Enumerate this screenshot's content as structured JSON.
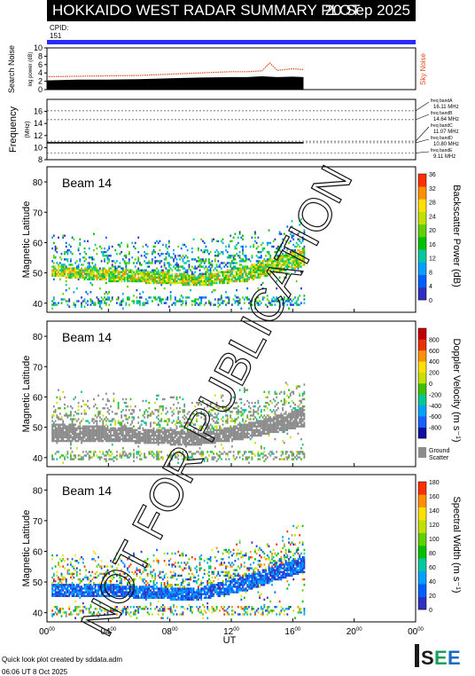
{
  "header": {
    "title": "HOKKAIDO WEST RADAR SUMMARY PLOT",
    "date": "20 Sep 2025",
    "cpid_label": "CPID:",
    "cpid_value": "151"
  },
  "watermark": "NOT FOR PUBLICATION",
  "x_axis": {
    "label": "UT",
    "ticks": [
      {
        "h": "00",
        "m": "00"
      },
      {
        "h": "04",
        "m": "00"
      },
      {
        "h": "08",
        "m": "00"
      },
      {
        "h": "12",
        "m": "00"
      },
      {
        "h": "16",
        "m": "00"
      },
      {
        "h": "20",
        "m": "00"
      },
      {
        "h": "00",
        "m": "00"
      }
    ]
  },
  "colors": {
    "cpid_bar": "#2a2aff",
    "noise_search": "#000000",
    "noise_sky": "#e04a1a",
    "ground_scatter": "#8c8c8c"
  },
  "chart_data": [
    {
      "type": "area",
      "ylabel": "Search Noise",
      "ylabel_sub": "log power (dB)",
      "right_label": "Sky Noise",
      "ylim": [
        0,
        10
      ],
      "yticks": [
        0,
        2,
        4,
        6,
        8,
        10
      ],
      "xlim": [
        0,
        24
      ],
      "series": [
        {
          "name": "Search Noise",
          "x": [
            0,
            2,
            4,
            6,
            8,
            10,
            12,
            13,
            14,
            15,
            16,
            16.7
          ],
          "values": [
            2.2,
            2.4,
            2.4,
            2.5,
            2.7,
            2.9,
            3.0,
            3.0,
            3.2,
            3.0,
            3.1,
            3.0
          ]
        },
        {
          "name": "Sky Noise",
          "x": [
            0,
            2,
            4,
            6,
            8,
            10,
            12,
            13,
            14,
            14.5,
            15,
            16,
            16.7
          ],
          "values": [
            3.1,
            3.2,
            3.3,
            3.4,
            3.7,
            4.0,
            4.3,
            4.3,
            4.5,
            6.4,
            4.6,
            5.0,
            4.8
          ]
        }
      ]
    },
    {
      "type": "line",
      "ylabel": "Frequency",
      "ylabel_sub": "(MHz)",
      "ylim": [
        8,
        18
      ],
      "yticks": [
        8,
        10,
        12,
        14,
        16
      ],
      "xlim": [
        0,
        24
      ],
      "bands": [
        {
          "name": "freq bandA",
          "value": "16.11 MHz",
          "freq": 16.11
        },
        {
          "name": "freq bandB",
          "value": "14.64 MHz",
          "freq": 14.64
        },
        {
          "name": "freq bandC",
          "value": "11.07 MHz",
          "freq": 11.07
        },
        {
          "name": "freq bandD",
          "value": "10.80 MHz",
          "freq": 10.8
        },
        {
          "name": "freq bandE",
          "value": "9.11 MHz",
          "freq": 9.11
        }
      ],
      "series": [
        {
          "x": [
            0,
            16.7
          ],
          "values": [
            10.8,
            10.8
          ]
        }
      ]
    },
    {
      "type": "heatmap",
      "beam": "Beam 14",
      "ylabel": "Magnetic Latitude",
      "ylim": [
        37,
        85
      ],
      "yticks": [
        40,
        50,
        60,
        70,
        80
      ],
      "xlim": [
        0,
        24
      ],
      "colorbar": {
        "label": "Backscatter Power (dB)",
        "ticks": [
          "0",
          "4",
          "8",
          "12",
          "16",
          "20",
          "24",
          "28",
          "32",
          "36"
        ],
        "colors": [
          "#3030c0",
          "#0060ff",
          "#00a0ff",
          "#00c8a0",
          "#00c000",
          "#60d000",
          "#c0e000",
          "#ffe000",
          "#ff9000",
          "#ff3000"
        ]
      },
      "dense_band": [
        [
          0.5,
          48.5,
          52
        ],
        [
          4,
          47,
          51
        ],
        [
          8,
          46,
          50
        ],
        [
          10,
          45.5,
          49
        ],
        [
          13,
          47,
          52
        ],
        [
          16.7,
          52,
          58
        ]
      ]
    },
    {
      "type": "heatmap",
      "beam": "Beam 14",
      "ylabel": "Magnetic Latitude",
      "ylim": [
        37,
        85
      ],
      "yticks": [
        40,
        50,
        60,
        70,
        80
      ],
      "xlim": [
        0,
        24
      ],
      "colorbar": {
        "label": "Doppler Velocity (m s⁻¹)",
        "ticks": [
          "800",
          "600",
          "400",
          "200",
          "0",
          "-200",
          "-400",
          "-600",
          "-800"
        ],
        "colors": [
          "#1010a0",
          "#1860ff",
          "#00a0ff",
          "#00c890",
          "#40c000",
          "#c8e000",
          "#ffe000",
          "#ff9000",
          "#e83000",
          "#c00000"
        ],
        "ground_label": "Ground",
        "ground_label2": "Scatter"
      },
      "dense_band": [
        [
          0.5,
          45,
          51
        ],
        [
          4,
          45,
          50
        ],
        [
          8,
          44,
          49
        ],
        [
          10,
          44,
          48
        ],
        [
          13,
          46,
          51
        ],
        [
          16.7,
          50,
          56
        ]
      ]
    },
    {
      "type": "heatmap",
      "beam": "Beam 14",
      "ylabel": "Magnetic Latitude",
      "ylim": [
        37,
        85
      ],
      "yticks": [
        40,
        50,
        60,
        70,
        80
      ],
      "xlim": [
        0,
        24
      ],
      "colorbar": {
        "label": "Spectral Width (m s⁻¹)",
        "ticks": [
          "0",
          "20",
          "40",
          "60",
          "80",
          "100",
          "120",
          "140",
          "160",
          "180"
        ],
        "colors": [
          "#3030c0",
          "#0060ff",
          "#00a0ff",
          "#00c8a0",
          "#00c000",
          "#60d000",
          "#c0e000",
          "#ffe000",
          "#ff9000",
          "#ff3000"
        ]
      },
      "dense_band": [
        [
          0.5,
          45,
          49
        ],
        [
          4,
          45,
          49
        ],
        [
          8,
          44,
          48
        ],
        [
          10,
          44,
          48
        ],
        [
          13,
          47,
          52
        ],
        [
          16.7,
          53,
          58
        ]
      ]
    }
  ],
  "footer": {
    "line1": "Quick look plot created by sddata.adm",
    "line2": "06:06 UT  8 Oct 2025",
    "logo": "ISEE"
  }
}
